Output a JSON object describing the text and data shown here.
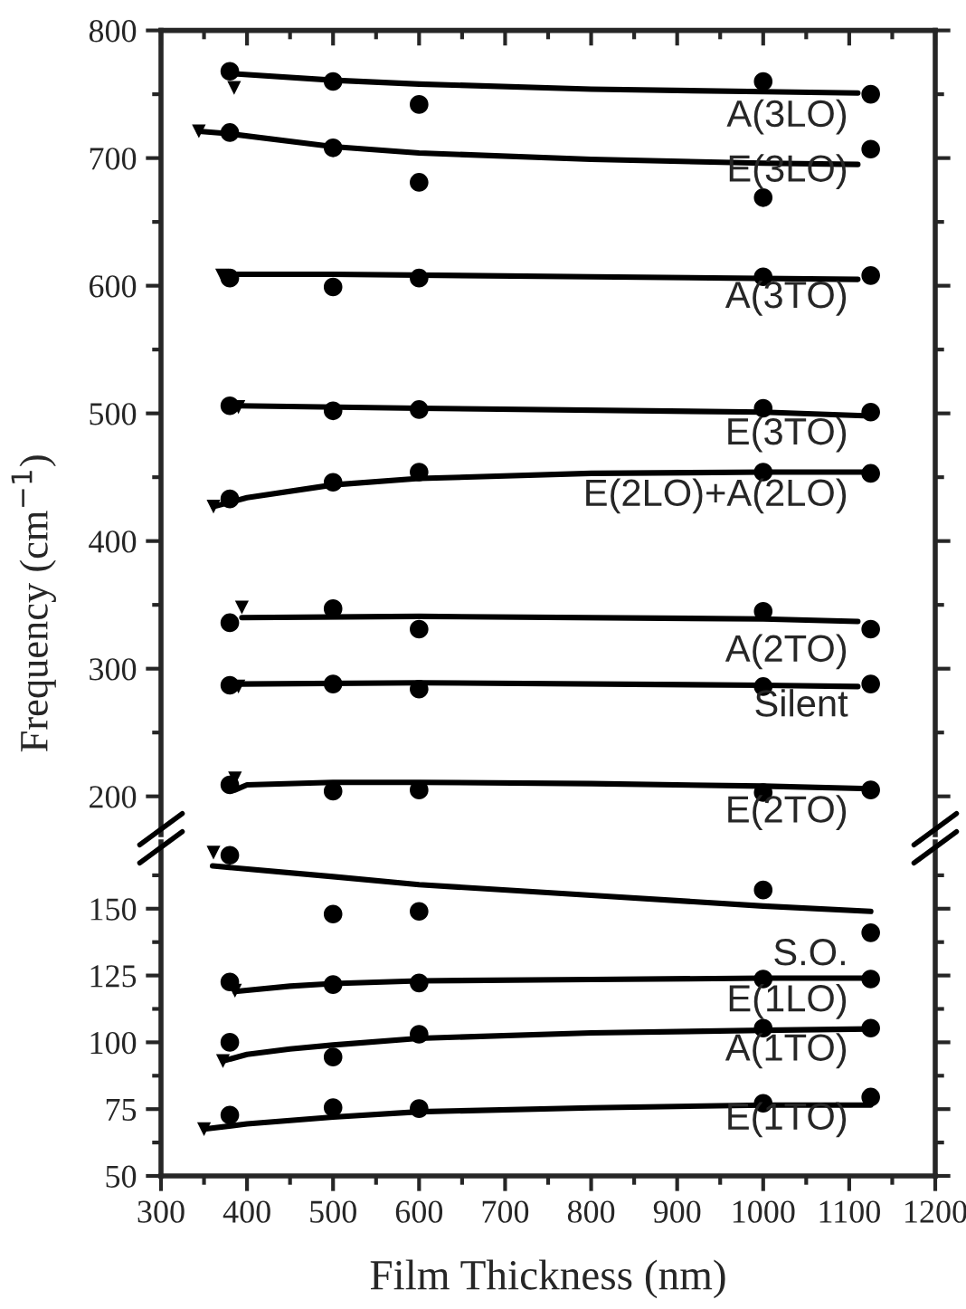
{
  "chart_data": [
    {
      "type": "scatter",
      "ylabel": "Frequency (cm$^{−1}$)",
      "xlim": [
        300,
        1200
      ],
      "ylim": [
        170,
        800
      ],
      "tick_labels": "y",
      "xticks": [
        300,
        {
          "value": 350,
          "label": null
        },
        400,
        {
          "value": 450,
          "label": null
        },
        500,
        {
          "value": 550,
          "label": null
        },
        600,
        {
          "value": 650,
          "label": null
        },
        700,
        {
          "value": 750,
          "label": null
        },
        800,
        {
          "value": 850,
          "label": null
        },
        900,
        {
          "value": 950,
          "label": null
        },
        1000,
        {
          "value": 1050,
          "label": null
        },
        1100,
        {
          "value": 1150,
          "label": null
        },
        1200
      ],
      "yticks": [
        200,
        {
          "value": 250,
          "label": null
        },
        300,
        {
          "value": 350,
          "label": null
        },
        400,
        {
          "value": 450,
          "label": null
        },
        500,
        {
          "value": 550,
          "label": null
        },
        600,
        {
          "value": 650,
          "label": null
        },
        700,
        {
          "value": 750,
          "label": null
        },
        800
      ],
      "series": [
        {
          "name": "A(3LO)",
          "color": "#000000",
          "marker": "circle",
          "x": [
            380,
            500,
            600,
            1000,
            1125
          ],
          "values": [
            768,
            760,
            742,
            760,
            750
          ]
        },
        {
          "type": "line",
          "color": "#000000",
          "x": [
            385,
            500,
            600,
            800,
            1000,
            1110
          ],
          "values": [
            766,
            761,
            758,
            754,
            752,
            751
          ]
        },
        {
          "name": "E(3LO)",
          "color": "#000000",
          "marker": "circle",
          "x": [
            380,
            500,
            600,
            1000,
            1125
          ],
          "values": [
            720,
            708,
            681,
            669,
            707
          ]
        },
        {
          "type": "line",
          "color": "#000000",
          "x": [
            344,
            380,
            500,
            600,
            800,
            1000,
            1110
          ],
          "values": [
            721,
            719,
            709,
            704,
            699,
            696,
            695
          ]
        },
        {
          "name": "A(3TO)",
          "color": "#000000",
          "marker": "circle",
          "x": [
            380,
            500,
            600,
            1000,
            1125
          ],
          "values": [
            606,
            599,
            606,
            607,
            608
          ]
        },
        {
          "type": "line",
          "color": "#000000",
          "x": [
            371,
            500,
            800,
            1110
          ],
          "values": [
            609,
            609,
            607,
            605
          ]
        },
        {
          "name": "E(3TO)",
          "color": "#000000",
          "marker": "circle",
          "x": [
            380,
            500,
            600,
            1000,
            1125
          ],
          "values": [
            506,
            502,
            503,
            504,
            501
          ]
        },
        {
          "type": "line",
          "color": "#000000",
          "x": [
            390,
            600,
            1000,
            1125
          ],
          "values": [
            506,
            504,
            501,
            498
          ]
        },
        {
          "name": "E(2LO)+A(2LO)",
          "color": "#000000",
          "marker": "circle",
          "x": [
            380,
            500,
            600,
            1000,
            1125
          ],
          "values": [
            433,
            446,
            454,
            454,
            453
          ]
        },
        {
          "type": "line",
          "color": "#000000",
          "x": [
            361,
            400,
            500,
            600,
            800,
            1000,
            1125
          ],
          "values": [
            427,
            434,
            444,
            449,
            453,
            454,
            454
          ]
        },
        {
          "name": "A(2TO)",
          "color": "#000000",
          "marker": "circle",
          "x": [
            380,
            500,
            600,
            1000,
            1125
          ],
          "values": [
            336,
            347,
            331,
            345,
            331
          ]
        },
        {
          "type": "line",
          "color": "#000000",
          "x": [
            394,
            600,
            1000,
            1110
          ],
          "values": [
            340,
            341,
            339,
            337
          ]
        },
        {
          "name": "Silent",
          "color": "#000000",
          "marker": "circle",
          "x": [
            380,
            500,
            600,
            1000,
            1125
          ],
          "values": [
            287,
            288,
            284,
            286,
            288
          ]
        },
        {
          "type": "line",
          "color": "#000000",
          "x": [
            390,
            600,
            1000,
            1110
          ],
          "values": [
            288,
            289,
            287,
            286
          ]
        },
        {
          "name": "E(2TO)",
          "color": "#000000",
          "marker": "circle",
          "x": [
            380,
            500,
            600,
            1000,
            1125
          ],
          "values": [
            209,
            204,
            205,
            203,
            205
          ]
        },
        {
          "type": "line",
          "color": "#000000",
          "x": [
            386,
            400,
            500,
            600,
            800,
            1000,
            1125
          ],
          "values": [
            205,
            209,
            211,
            211,
            210,
            208,
            206
          ]
        },
        {
          "color": "#000000",
          "marker": "triangle",
          "x": [
            385,
            344,
            371,
            390,
            361,
            394,
            390,
            386
          ],
          "values": [
            755,
            721,
            608,
            505,
            427,
            348,
            286,
            214
          ]
        }
      ]
    },
    {
      "type": "scatter",
      "xlabel": "Film Thickness (nm)",
      "xlim": [
        300,
        1200
      ],
      "ylim": [
        50,
        175
      ],
      "xticks": [
        300,
        {
          "value": 350,
          "label": null
        },
        400,
        {
          "value": 450,
          "label": null
        },
        500,
        {
          "value": 550,
          "label": null
        },
        600,
        {
          "value": 650,
          "label": null
        },
        700,
        {
          "value": 750,
          "label": null
        },
        800,
        {
          "value": 850,
          "label": null
        },
        900,
        {
          "value": 950,
          "label": null
        },
        1000,
        {
          "value": 1050,
          "label": null
        },
        1100,
        {
          "value": 1150,
          "label": null
        },
        1200
      ],
      "yticks": [
        50,
        {
          "value": 62.5,
          "label": null
        },
        75,
        {
          "value": 87.5,
          "label": null
        },
        100,
        {
          "value": 112.5,
          "label": null
        },
        125,
        {
          "value": 137.5,
          "label": null
        },
        150,
        {
          "value": 162.5,
          "label": null
        }
      ],
      "series": [
        {
          "name": "S.O.",
          "color": "#000000",
          "marker": "circle",
          "x": [
            380,
            500,
            600,
            1000,
            1125
          ],
          "values": [
            170,
            148,
            149,
            157,
            141
          ]
        },
        {
          "type": "line",
          "color": "#000000",
          "x": [
            360,
            500,
            600,
            800,
            1000,
            1125
          ],
          "values": [
            166,
            162,
            159,
            155,
            151,
            149
          ]
        },
        {
          "name": "E(1LO)",
          "color": "#000000",
          "marker": "circle",
          "x": [
            380,
            500,
            600,
            1000,
            1125
          ],
          "values": [
            122.6,
            121.6,
            122.2,
            123.7,
            123.7
          ]
        },
        {
          "type": "line",
          "color": "#000000",
          "x": [
            386,
            450,
            500,
            600,
            800,
            1000,
            1125
          ],
          "values": [
            119,
            121,
            122,
            123,
            123.5,
            124,
            124
          ]
        },
        {
          "name": "A(1TO)",
          "color": "#000000",
          "marker": "circle",
          "x": [
            380,
            500,
            600,
            1000,
            1125
          ],
          "values": [
            100,
            94.5,
            103,
            105.3,
            105.3
          ]
        },
        {
          "type": "line",
          "color": "#000000",
          "x": [
            372,
            400,
            450,
            500,
            600,
            800,
            1000,
            1125
          ],
          "values": [
            93,
            95.5,
            97.5,
            99,
            101.5,
            103.5,
            104.5,
            105
          ]
        },
        {
          "name": "E(1TO)",
          "color": "#000000",
          "marker": "circle",
          "x": [
            380,
            500,
            600,
            1000,
            1125
          ],
          "values": [
            72.8,
            75.6,
            75.2,
            77.2,
            79.5
          ]
        },
        {
          "type": "line",
          "color": "#000000",
          "x": [
            350,
            400,
            500,
            600,
            800,
            1000,
            1125
          ],
          "values": [
            67.5,
            69.5,
            72,
            74,
            75.5,
            76.5,
            76.5
          ]
        },
        {
          "color": "#000000",
          "marker": "triangle",
          "x": [
            361,
            386,
            372,
            350
          ],
          "values": [
            171,
            119.3,
            93,
            67.5
          ]
        }
      ]
    }
  ]
}
